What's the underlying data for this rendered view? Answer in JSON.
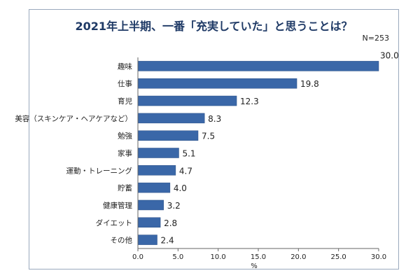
{
  "chart_data": {
    "type": "bar",
    "orientation": "horizontal",
    "title": "2021年上半期、一番「充実していた」と思うことは？",
    "note": "N=253",
    "xlabel": "%",
    "ylabel": "",
    "xlim": [
      0,
      30
    ],
    "x_ticks": [
      "0.0",
      "5.0",
      "10.0",
      "15.0",
      "20.0",
      "25.0",
      "30.0"
    ],
    "categories": [
      "趣味",
      "仕事",
      "育児",
      "美容（スキンケア・ヘアケアなど）",
      "勉強",
      "家事",
      "運動・トレーニング",
      "貯蓄",
      "健康管理",
      "ダイエット",
      "その他"
    ],
    "values": [
      30.0,
      19.8,
      12.3,
      8.3,
      7.5,
      5.1,
      4.7,
      4.0,
      3.2,
      2.8,
      2.4
    ],
    "value_labels": [
      "30.0",
      "19.8",
      "12.3",
      "8.3",
      "7.5",
      "5.1",
      "4.7",
      "4.0",
      "3.2",
      "2.8",
      "2.4"
    ],
    "grid": false,
    "legend": "none",
    "colors": {
      "bar": "#3a67a8",
      "bar_edge": "#2b4f86",
      "title": "#1f3a66",
      "frame": "#9aa9bd",
      "axis": "#666666"
    }
  }
}
